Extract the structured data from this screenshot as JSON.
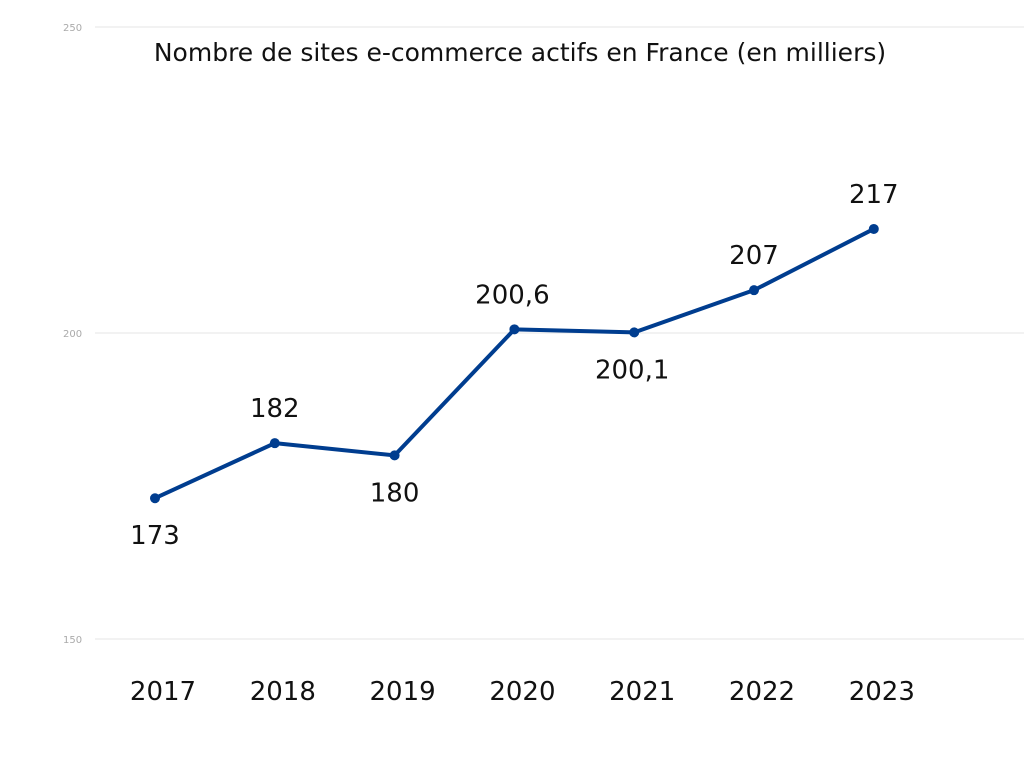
{
  "chart_data": {
    "type": "line",
    "title": "Nombre de sites e-commerce actifs en France (en milliers)",
    "categories": [
      "2017",
      "2018",
      "2019",
      "2020",
      "2021",
      "2022",
      "2023"
    ],
    "values": [
      173,
      182,
      180,
      200.6,
      200.1,
      207,
      217
    ],
    "data_labels": [
      "173",
      "182",
      "180",
      "200,6",
      "200,1",
      "207",
      "217"
    ],
    "yticks": [
      150,
      200,
      250
    ],
    "ylim": [
      150,
      250
    ],
    "grid": true,
    "legend": "none",
    "color": "#003d8f",
    "xlabel": "",
    "ylabel": ""
  }
}
